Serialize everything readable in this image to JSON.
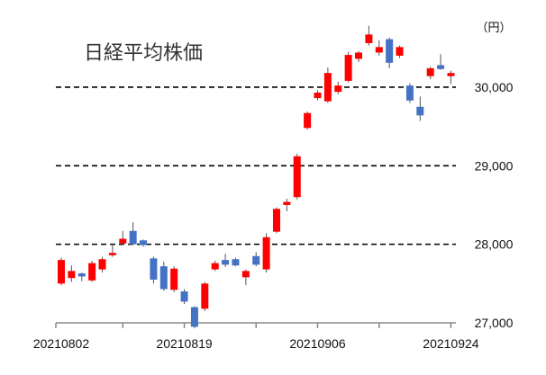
{
  "chart_data": {
    "type": "candlestick",
    "title": "日経平均株価",
    "unit_label": "（円）",
    "ylim": [
      27000,
      30800
    ],
    "y_ticks": [
      {
        "value": 27000,
        "label": "27,000"
      },
      {
        "value": 28000,
        "label": "28,000"
      },
      {
        "value": 29000,
        "label": "29,000"
      },
      {
        "value": 30000,
        "label": "30,000"
      }
    ],
    "dashed_gridlines": [
      28000,
      29000,
      30000
    ],
    "x_tick_labels": [
      {
        "index": 0,
        "label": "20210802"
      },
      {
        "index": 12,
        "label": "20210819"
      },
      {
        "index": 25,
        "label": "20210906"
      },
      {
        "index": 38,
        "label": "20210924"
      }
    ],
    "x_tick_marks": [
      0,
      6,
      12,
      19,
      25,
      31,
      38
    ],
    "colors": {
      "up": "#ff0000",
      "down": "#4472c4",
      "grid": "#000000",
      "axis": "#888888"
    },
    "candles": [
      {
        "open": 27500,
        "close": 27800,
        "high": 27830,
        "low": 27480
      },
      {
        "open": 27570,
        "close": 27660,
        "high": 27730,
        "low": 27520
      },
      {
        "open": 27630,
        "close": 27590,
        "high": 27640,
        "low": 27530
      },
      {
        "open": 27540,
        "close": 27760,
        "high": 27790,
        "low": 27520
      },
      {
        "open": 27680,
        "close": 27810,
        "high": 27840,
        "low": 27640
      },
      {
        "open": 27860,
        "close": 27890,
        "high": 28000,
        "low": 27840
      },
      {
        "open": 28010,
        "close": 28070,
        "high": 28170,
        "low": 27990
      },
      {
        "open": 28170,
        "close": 28000,
        "high": 28280,
        "low": 27990
      },
      {
        "open": 28050,
        "close": 27990,
        "high": 28060,
        "low": 27970
      },
      {
        "open": 27820,
        "close": 27550,
        "high": 27840,
        "low": 27500
      },
      {
        "open": 27720,
        "close": 27430,
        "high": 27780,
        "low": 27410
      },
      {
        "open": 27420,
        "close": 27690,
        "high": 27720,
        "low": 27390
      },
      {
        "open": 27400,
        "close": 27270,
        "high": 27430,
        "low": 27240
      },
      {
        "open": 27200,
        "close": 26950,
        "high": 27210,
        "low": 26930
      },
      {
        "open": 27180,
        "close": 27500,
        "high": 27520,
        "low": 27150
      },
      {
        "open": 27680,
        "close": 27760,
        "high": 27790,
        "low": 27660
      },
      {
        "open": 27800,
        "close": 27740,
        "high": 27880,
        "low": 27710
      },
      {
        "open": 27810,
        "close": 27730,
        "high": 27830,
        "low": 27720
      },
      {
        "open": 27580,
        "close": 27660,
        "high": 27680,
        "low": 27480
      },
      {
        "open": 27850,
        "close": 27740,
        "high": 27900,
        "low": 27720
      },
      {
        "open": 27680,
        "close": 28090,
        "high": 28140,
        "low": 27640
      },
      {
        "open": 28160,
        "close": 28450,
        "high": 28470,
        "low": 28140
      },
      {
        "open": 28500,
        "close": 28540,
        "high": 28580,
        "low": 28420
      },
      {
        "open": 28600,
        "close": 29120,
        "high": 29150,
        "low": 28570
      },
      {
        "open": 29480,
        "close": 29670,
        "high": 29690,
        "low": 29460
      },
      {
        "open": 29860,
        "close": 29930,
        "high": 29960,
        "low": 29830
      },
      {
        "open": 29820,
        "close": 30180,
        "high": 30250,
        "low": 29800
      },
      {
        "open": 29940,
        "close": 30020,
        "high": 30070,
        "low": 29910
      },
      {
        "open": 30080,
        "close": 30410,
        "high": 30450,
        "low": 30060
      },
      {
        "open": 30360,
        "close": 30440,
        "high": 30460,
        "low": 30320
      },
      {
        "open": 30560,
        "close": 30670,
        "high": 30780,
        "low": 30530
      },
      {
        "open": 30440,
        "close": 30510,
        "high": 30600,
        "low": 30400
      },
      {
        "open": 30610,
        "close": 30310,
        "high": 30630,
        "low": 30240
      },
      {
        "open": 30400,
        "close": 30510,
        "high": 30530,
        "low": 30370
      },
      {
        "open": 30020,
        "close": 29830,
        "high": 30050,
        "low": 29800
      },
      {
        "open": 29750,
        "close": 29640,
        "high": 29880,
        "low": 29570
      },
      {
        "open": 30140,
        "close": 30240,
        "high": 30260,
        "low": 30100
      },
      {
        "open": 30280,
        "close": 30230,
        "high": 30420,
        "low": 30220
      },
      {
        "open": 30140,
        "close": 30180,
        "high": 30210,
        "low": 30040
      }
    ]
  }
}
